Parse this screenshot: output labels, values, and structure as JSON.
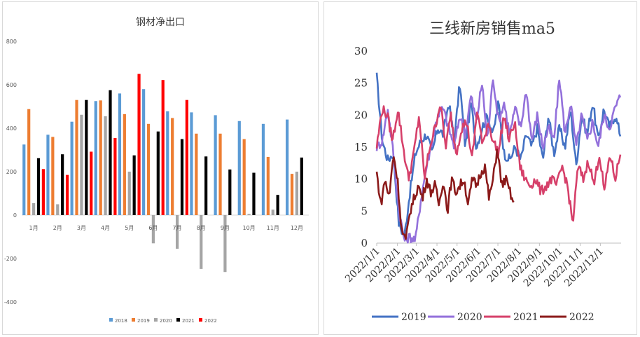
{
  "chart_data": [
    {
      "type": "bar",
      "title": "钢材净出口",
      "categories": [
        "1月",
        "2月",
        "3月",
        "4月",
        "5月",
        "6月",
        "7月",
        "8月",
        "9月",
        "10月",
        "11月",
        "12月"
      ],
      "ylim": [
        -400,
        800
      ],
      "yticks": [
        "800",
        "600",
        "400",
        "200",
        "0",
        "-200",
        "-400"
      ],
      "grid": false,
      "legend": "bottom",
      "series": [
        {
          "name": "2018",
          "color": "#5b9bd5",
          "values": [
            325,
            370,
            430,
            525,
            560,
            580,
            478,
            473,
            460,
            433,
            420,
            440
          ]
        },
        {
          "name": "2019",
          "color": "#ed7d31",
          "values": [
            488,
            360,
            530,
            528,
            465,
            420,
            447,
            375,
            375,
            350,
            268,
            190
          ]
        },
        {
          "name": "2020",
          "color": "#a5a5a5",
          "values": [
            55,
            50,
            462,
            455,
            200,
            -130,
            -155,
            -248,
            -262,
            5,
            25,
            200
          ]
        },
        {
          "name": "2021",
          "color": "#000000",
          "values": [
            262,
            280,
            530,
            575,
            275,
            385,
            350,
            270,
            210,
            195,
            93,
            265
          ]
        },
        {
          "name": "2022",
          "color": "#ff0000",
          "values": [
            212,
            185,
            292,
            355,
            650,
            622,
            530,
            null,
            null,
            null,
            null,
            null
          ]
        }
      ]
    },
    {
      "type": "line",
      "title": "三线新房销售ma5",
      "ylim": [
        0,
        30
      ],
      "yticks": [
        "0",
        "5",
        "10",
        "15",
        "20",
        "25",
        "30"
      ],
      "xticks": [
        "2022/1/1",
        "2022/2/1",
        "2022/3/1",
        "2022/4/1",
        "2022/5/1",
        "2022/6/1",
        "2022/7/1",
        "2022/8/1",
        "2022/9/1",
        "2022/10/1",
        "2022/11/1",
        "2022/12/1"
      ],
      "grid": false,
      "legend": "bottom",
      "series": [
        {
          "name": "2019",
          "color": "#4472c4",
          "x_end": "2022/12/31",
          "anchors": [
            26,
            16,
            13,
            14,
            3,
            1,
            8,
            14,
            16,
            17,
            14,
            18,
            17,
            22,
            16,
            25,
            15,
            22,
            15,
            18,
            20,
            17,
            22,
            14,
            13,
            15,
            13,
            17,
            15,
            18,
            13,
            20,
            14,
            18,
            15,
            21,
            12,
            20,
            17,
            22,
            16,
            21,
            18,
            20,
            17
          ]
        },
        {
          "name": "2020",
          "color": "#9370db",
          "x_end": "2022/12/31",
          "anchors": [
            15,
            16,
            21,
            14,
            5,
            0.5,
            1,
            0.5,
            7,
            12,
            16,
            20,
            21,
            18,
            15,
            20,
            17,
            23,
            19,
            25,
            16,
            26,
            19,
            22,
            17,
            21,
            18,
            24,
            16,
            20,
            15,
            18,
            16,
            26,
            17,
            22,
            15,
            20,
            16,
            19,
            15,
            20,
            18,
            21,
            23
          ]
        },
        {
          "name": "2021",
          "color": "#d6406a",
          "x_end": "2022/12/31",
          "anchors": [
            15,
            21,
            20,
            16,
            21,
            15,
            10,
            14,
            20,
            10,
            15,
            18,
            22,
            15,
            20,
            14,
            18,
            19,
            13,
            21,
            15,
            19,
            16,
            14,
            20,
            16,
            19,
            12,
            10,
            9,
            10,
            8,
            9,
            10,
            9,
            12,
            9,
            3,
            12,
            10,
            13,
            9,
            14,
            8,
            14,
            10,
            14
          ]
        },
        {
          "name": "2022",
          "color": "#8b1a1a",
          "x_end": "2022/7/25",
          "anchors": [
            11,
            6,
            10,
            7,
            14,
            10,
            2,
            0.3,
            5,
            7,
            9,
            7,
            10,
            8,
            9,
            6,
            10,
            5,
            10,
            8,
            9,
            10,
            6,
            10,
            9,
            11,
            12,
            7,
            10,
            15,
            9,
            10,
            8,
            6
          ]
        }
      ]
    }
  ]
}
